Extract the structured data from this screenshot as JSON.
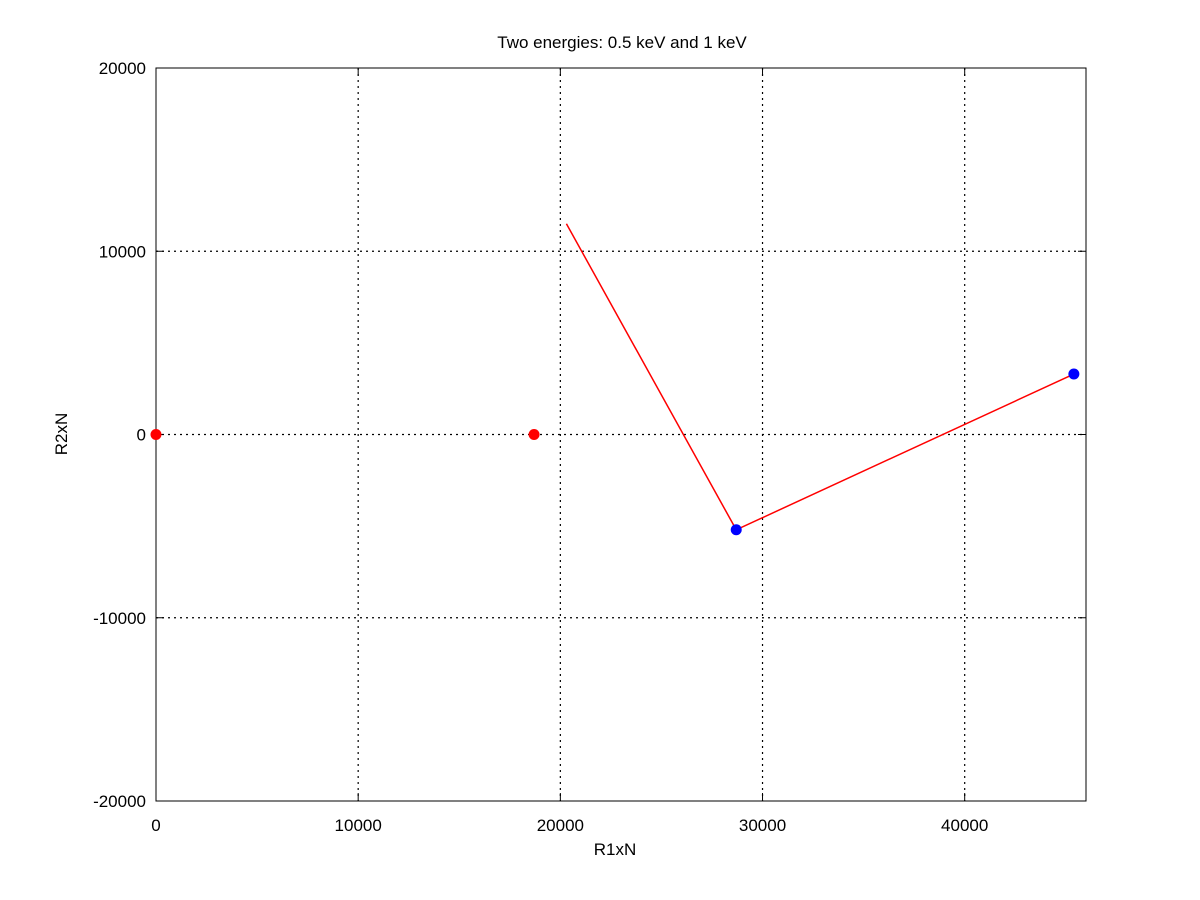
{
  "chart_data": {
    "type": "scatter",
    "title": "Two energies: 0.5 keV and 1 keV",
    "xlabel": "R1xN",
    "ylabel": "R2xN",
    "xlim": [
      0,
      46000
    ],
    "ylim": [
      -20000,
      20000
    ],
    "xticks": [
      0,
      10000,
      20000,
      30000,
      40000
    ],
    "yticks": [
      -20000,
      -10000,
      0,
      10000,
      20000
    ],
    "grid": true,
    "series": [
      {
        "color": "#ff0000",
        "mode": "markers",
        "x": [
          0,
          18700
        ],
        "y": [
          0,
          0
        ]
      },
      {
        "color": "#ff0000",
        "mode": "line",
        "x": [
          20300,
          28700,
          45400
        ],
        "y": [
          11500,
          -5200,
          3300
        ]
      },
      {
        "color": "#0000ff",
        "mode": "markers",
        "x": [
          28700,
          45400
        ],
        "y": [
          -5200,
          3300
        ]
      }
    ]
  }
}
